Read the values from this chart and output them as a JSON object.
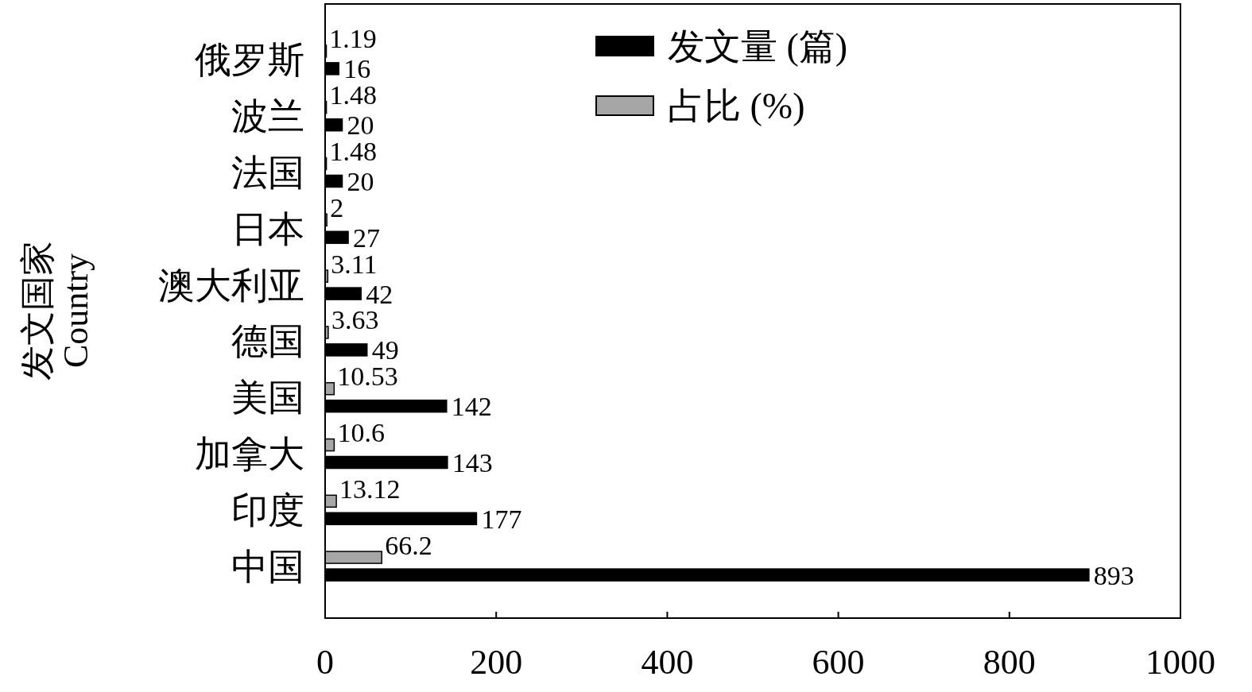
{
  "chart_data": {
    "type": "bar",
    "orientation": "horizontal",
    "ylabel": "发文国家\nCountry",
    "categories": [
      "俄罗斯",
      "波兰",
      "法国",
      "日本",
      "澳大利亚",
      "德国",
      "美国",
      "加拿大",
      "印度",
      "中国"
    ],
    "series": [
      {
        "name": "发文量 (篇)",
        "color": "#000000",
        "values": [
          16,
          20,
          20,
          27,
          42,
          49,
          142,
          143,
          177,
          893
        ]
      },
      {
        "name": "占比 (%)",
        "color": "#a6a6a6",
        "values": [
          1.19,
          1.48,
          1.48,
          2,
          3.11,
          3.63,
          10.53,
          10.6,
          13.12,
          66.2
        ]
      }
    ],
    "xlim": [
      0,
      1000
    ],
    "xticks": [
      0,
      200,
      400,
      600,
      800,
      1000
    ],
    "data_labels": true,
    "legend": "top",
    "grid": false
  }
}
